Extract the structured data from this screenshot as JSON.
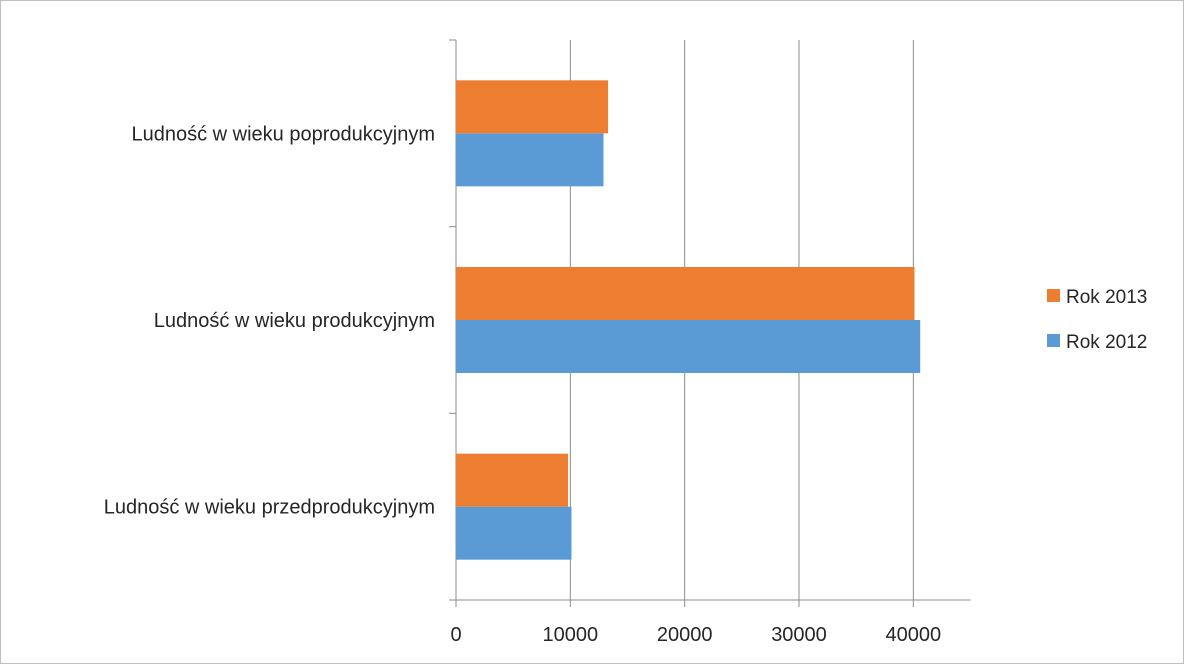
{
  "chart_data": {
    "type": "bar",
    "orientation": "horizontal",
    "categories": [
      "Ludność w wieku przedprodukcyjnym",
      "Ludność w wieku produkcyjnym",
      "Ludność w wieku poprodukcyjnym"
    ],
    "series": [
      {
        "name": "Rok 2012",
        "color": "#5b9bd5",
        "values": [
          10100,
          40600,
          12900
        ]
      },
      {
        "name": "Rok 2013",
        "color": "#ed7d31",
        "values": [
          9800,
          40100,
          13300
        ]
      }
    ],
    "x_ticks": [
      "0",
      "10000",
      "20000",
      "30000",
      "40000"
    ],
    "xlim": [
      0,
      45000
    ],
    "grid": "vertical",
    "legend": {
      "position": "right",
      "order": [
        "Rok 2013",
        "Rok 2012"
      ]
    }
  }
}
